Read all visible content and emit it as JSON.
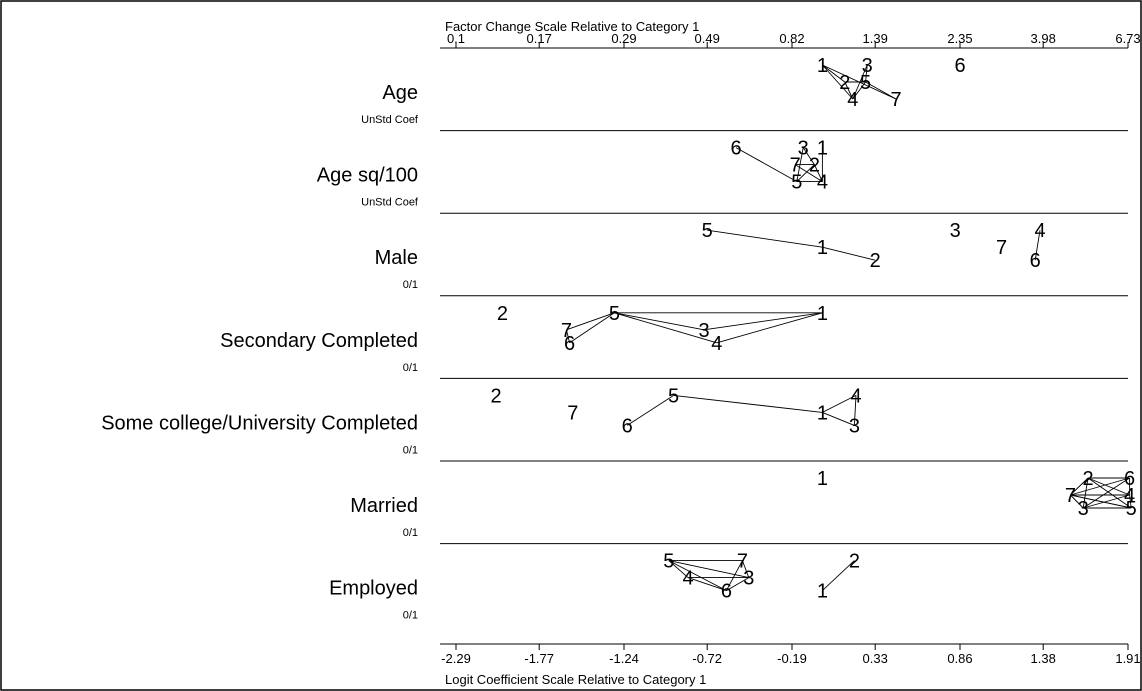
{
  "chart_data": {
    "type": "scatter",
    "variant": "odds-ratio-plot",
    "top_axis": {
      "title": "Factor Change Scale Relative to Category 1",
      "tick_labels": [
        "0.1",
        "0.17",
        "0.29",
        "0.49",
        "0.82",
        "1.39",
        "2.35",
        "3.98",
        "6.73"
      ]
    },
    "bottom_axis": {
      "title": "Logit Coefficient Scale Relative to Category 1",
      "tick_values": [
        -2.29,
        -1.77,
        -1.24,
        -0.72,
        -0.19,
        0.33,
        0.86,
        1.38,
        1.91
      ],
      "tick_labels": [
        "-2.29",
        "-1.77",
        "-1.24",
        "-0.72",
        "-0.19",
        "0.33",
        "0.86",
        "1.38",
        "1.91"
      ],
      "xlim": [
        -2.39,
        1.91
      ]
    },
    "rows": [
      {
        "label": "Age",
        "sublabel": "UnStd Coef",
        "points": [
          {
            "cat": "1",
            "x": 0.0,
            "level": 1
          },
          {
            "cat": "3",
            "x": 0.28,
            "level": 1
          },
          {
            "cat": "6",
            "x": 0.86,
            "level": 1
          },
          {
            "cat": "2",
            "x": 0.14,
            "level": 2
          },
          {
            "cat": "5",
            "x": 0.27,
            "level": 2
          },
          {
            "cat": "4",
            "x": 0.19,
            "level": 4
          },
          {
            "cat": "7",
            "x": 0.46,
            "level": 4
          }
        ],
        "links": [
          [
            "1",
            "2"
          ],
          [
            "1",
            "4"
          ],
          [
            "1",
            "7"
          ],
          [
            "3",
            "4"
          ],
          [
            "3",
            "5"
          ],
          [
            "2",
            "5"
          ],
          [
            "2",
            "4"
          ],
          [
            "5",
            "4"
          ],
          [
            "5",
            "7"
          ]
        ]
      },
      {
        "label": "Age sq/100",
        "sublabel": "UnStd Coef",
        "points": [
          {
            "cat": "6",
            "x": -0.54,
            "level": 1
          },
          {
            "cat": "3",
            "x": -0.12,
            "level": 1
          },
          {
            "cat": "1",
            "x": 0.0,
            "level": 1
          },
          {
            "cat": "7",
            "x": -0.17,
            "level": 2
          },
          {
            "cat": "2",
            "x": -0.05,
            "level": 2
          },
          {
            "cat": "5",
            "x": -0.16,
            "level": 4
          },
          {
            "cat": "4",
            "x": 0.0,
            "level": 4
          }
        ],
        "links": [
          [
            "6",
            "5"
          ],
          [
            "3",
            "5"
          ],
          [
            "1",
            "4"
          ],
          [
            "7",
            "2"
          ],
          [
            "7",
            "4"
          ],
          [
            "2",
            "5"
          ],
          [
            "2",
            "4"
          ],
          [
            "5",
            "4"
          ],
          [
            "3",
            "2"
          ]
        ]
      },
      {
        "label": "Male",
        "sublabel": "0/1",
        "points": [
          {
            "cat": "5",
            "x": -0.72,
            "level": 1
          },
          {
            "cat": "3",
            "x": 0.83,
            "level": 1
          },
          {
            "cat": "4",
            "x": 1.36,
            "level": 1
          },
          {
            "cat": "1",
            "x": 0.0,
            "level": 2
          },
          {
            "cat": "7",
            "x": 1.12,
            "level": 2
          },
          {
            "cat": "2",
            "x": 0.33,
            "level": 3
          },
          {
            "cat": "6",
            "x": 1.33,
            "level": 3
          }
        ],
        "links": [
          [
            "5",
            "1"
          ],
          [
            "1",
            "2"
          ],
          [
            "4",
            "6"
          ]
        ]
      },
      {
        "label": "Secondary Completed",
        "sublabel": "0/1",
        "points": [
          {
            "cat": "2",
            "x": -2.0,
            "level": 1
          },
          {
            "cat": "5",
            "x": -1.3,
            "level": 1
          },
          {
            "cat": "1",
            "x": 0.0,
            "level": 1
          },
          {
            "cat": "7",
            "x": -1.6,
            "level": 2
          },
          {
            "cat": "3",
            "x": -0.74,
            "level": 2
          },
          {
            "cat": "6",
            "x": -1.58,
            "level": 3
          },
          {
            "cat": "4",
            "x": -0.66,
            "level": 3
          }
        ],
        "links": [
          [
            "5",
            "7"
          ],
          [
            "5",
            "6"
          ],
          [
            "5",
            "3"
          ],
          [
            "5",
            "4"
          ],
          [
            "5",
            "1"
          ],
          [
            "1",
            "4"
          ],
          [
            "1",
            "3"
          ],
          [
            "7",
            "6"
          ]
        ]
      },
      {
        "label": "Some college/University Completed",
        "sublabel": "0/1",
        "points": [
          {
            "cat": "2",
            "x": -2.04,
            "level": 1
          },
          {
            "cat": "5",
            "x": -0.93,
            "level": 1
          },
          {
            "cat": "4",
            "x": 0.21,
            "level": 1
          },
          {
            "cat": "7",
            "x": -1.56,
            "level": 2
          },
          {
            "cat": "1",
            "x": 0.0,
            "level": 2
          },
          {
            "cat": "6",
            "x": -1.22,
            "level": 3
          },
          {
            "cat": "3",
            "x": 0.2,
            "level": 3
          }
        ],
        "links": [
          [
            "5",
            "1"
          ],
          [
            "5",
            "6"
          ],
          [
            "1",
            "4"
          ],
          [
            "1",
            "3"
          ],
          [
            "4",
            "3"
          ]
        ]
      },
      {
        "label": "Married",
        "sublabel": "0/1",
        "points": [
          {
            "cat": "1",
            "x": 0.0,
            "level": 1
          },
          {
            "cat": "2",
            "x": 1.66,
            "level": 1
          },
          {
            "cat": "6",
            "x": 1.92,
            "level": 1
          },
          {
            "cat": "7",
            "x": 1.55,
            "level": 2
          },
          {
            "cat": "4",
            "x": 1.92,
            "level": 2
          },
          {
            "cat": "3",
            "x": 1.63,
            "level": 3
          },
          {
            "cat": "5",
            "x": 1.93,
            "level": 3
          }
        ],
        "links": [
          [
            "2",
            "7"
          ],
          [
            "2",
            "3"
          ],
          [
            "2",
            "4"
          ],
          [
            "2",
            "5"
          ],
          [
            "6",
            "7"
          ],
          [
            "6",
            "4"
          ],
          [
            "6",
            "3"
          ],
          [
            "7",
            "3"
          ],
          [
            "7",
            "4"
          ],
          [
            "7",
            "5"
          ],
          [
            "4",
            "3"
          ],
          [
            "4",
            "5"
          ],
          [
            "3",
            "5"
          ],
          [
            "2",
            "6"
          ]
        ]
      },
      {
        "label": "Employed",
        "sublabel": "0/1",
        "points": [
          {
            "cat": "5",
            "x": -0.96,
            "level": 1
          },
          {
            "cat": "7",
            "x": -0.5,
            "level": 1
          },
          {
            "cat": "2",
            "x": 0.2,
            "level": 1
          },
          {
            "cat": "4",
            "x": -0.84,
            "level": 2
          },
          {
            "cat": "3",
            "x": -0.46,
            "level": 2
          },
          {
            "cat": "6",
            "x": -0.6,
            "level": 3
          },
          {
            "cat": "1",
            "x": 0.0,
            "level": 3
          }
        ],
        "links": [
          [
            "5",
            "7"
          ],
          [
            "5",
            "4"
          ],
          [
            "5",
            "6"
          ],
          [
            "5",
            "3"
          ],
          [
            "7",
            "6"
          ],
          [
            "7",
            "3"
          ],
          [
            "4",
            "6"
          ],
          [
            "4",
            "3"
          ],
          [
            "6",
            "3"
          ],
          [
            "2",
            "1"
          ]
        ]
      }
    ]
  }
}
